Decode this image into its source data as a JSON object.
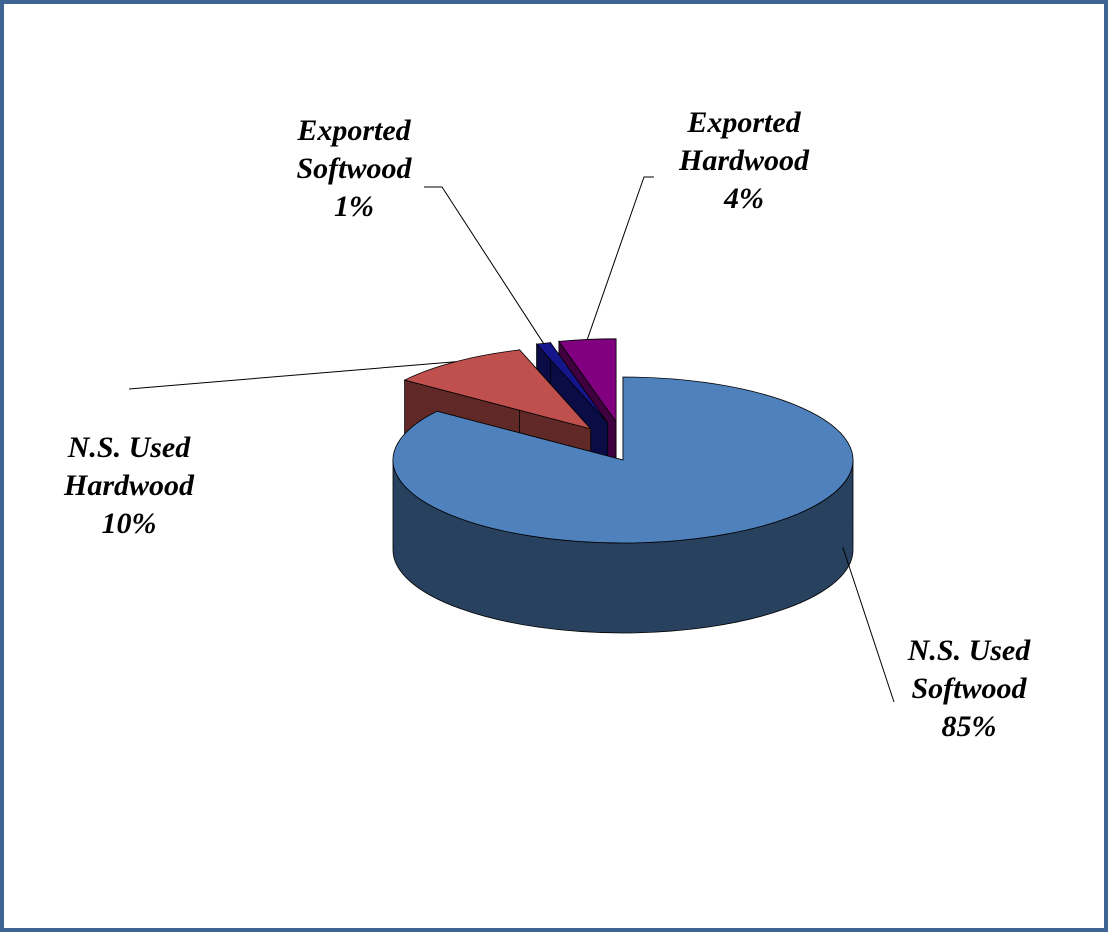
{
  "chart_data": {
    "type": "pie3d",
    "categories": [
      "N.S. Used Softwood",
      "N.S. Used Hardwood",
      "Exported Softwood",
      "Exported Hardwood"
    ],
    "values": [
      85,
      10,
      1,
      4
    ],
    "value_labels": [
      "85%",
      "10%",
      "1%",
      "4%"
    ],
    "colors": [
      "#4f81bd",
      "#c0504d",
      "#16168c",
      "#800080"
    ]
  }
}
